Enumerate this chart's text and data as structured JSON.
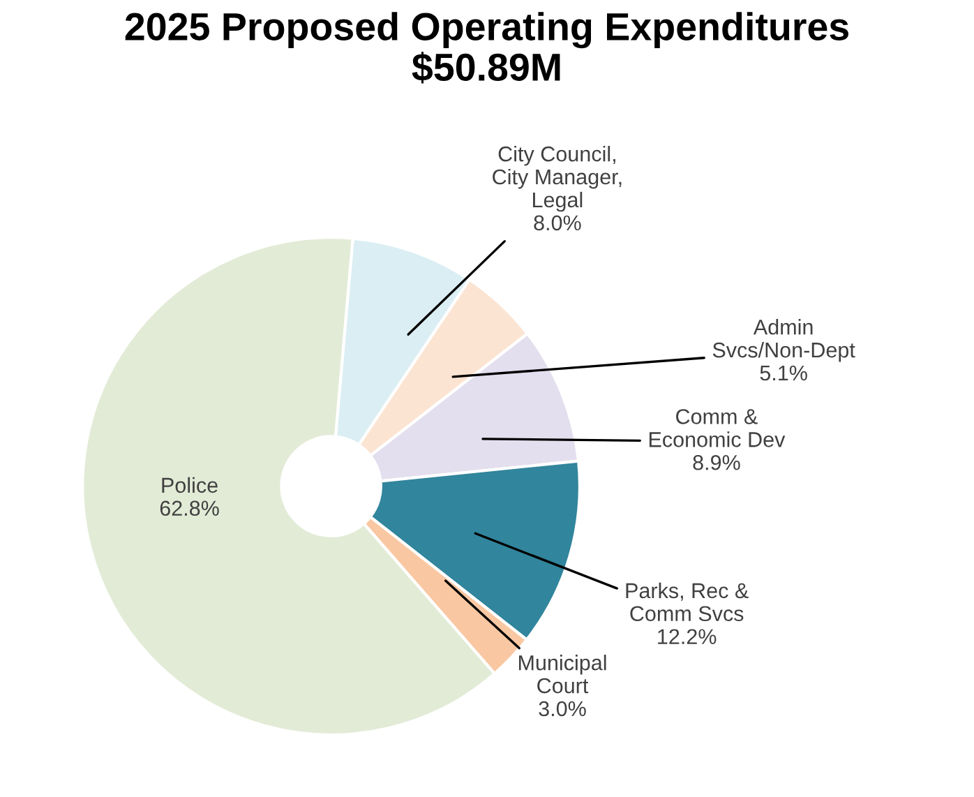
{
  "chart_data": {
    "type": "donut",
    "title": "2025 Proposed Operating Expenditures\n$50.89M",
    "categories": [
      "City Council,\nCity Manager,\nLegal",
      "Admin\nSvcs/Non-Dept",
      "Comm &\nEconomic Dev",
      "Parks, Rec &\nComm Svcs",
      "Municipal\nCourt",
      "Police"
    ],
    "values": [
      8.0,
      5.1,
      8.9,
      12.2,
      3.0,
      62.8
    ],
    "colors": [
      "#dbeef3",
      "#fce4d2",
      "#e3dfee",
      "#31859c",
      "#f9c8a2",
      "#e2ebd6"
    ],
    "value_labels": [
      "8.0%",
      "5.1%",
      "8.9%",
      "12.2%",
      "3.0%",
      "62.8%"
    ],
    "legend": false
  }
}
